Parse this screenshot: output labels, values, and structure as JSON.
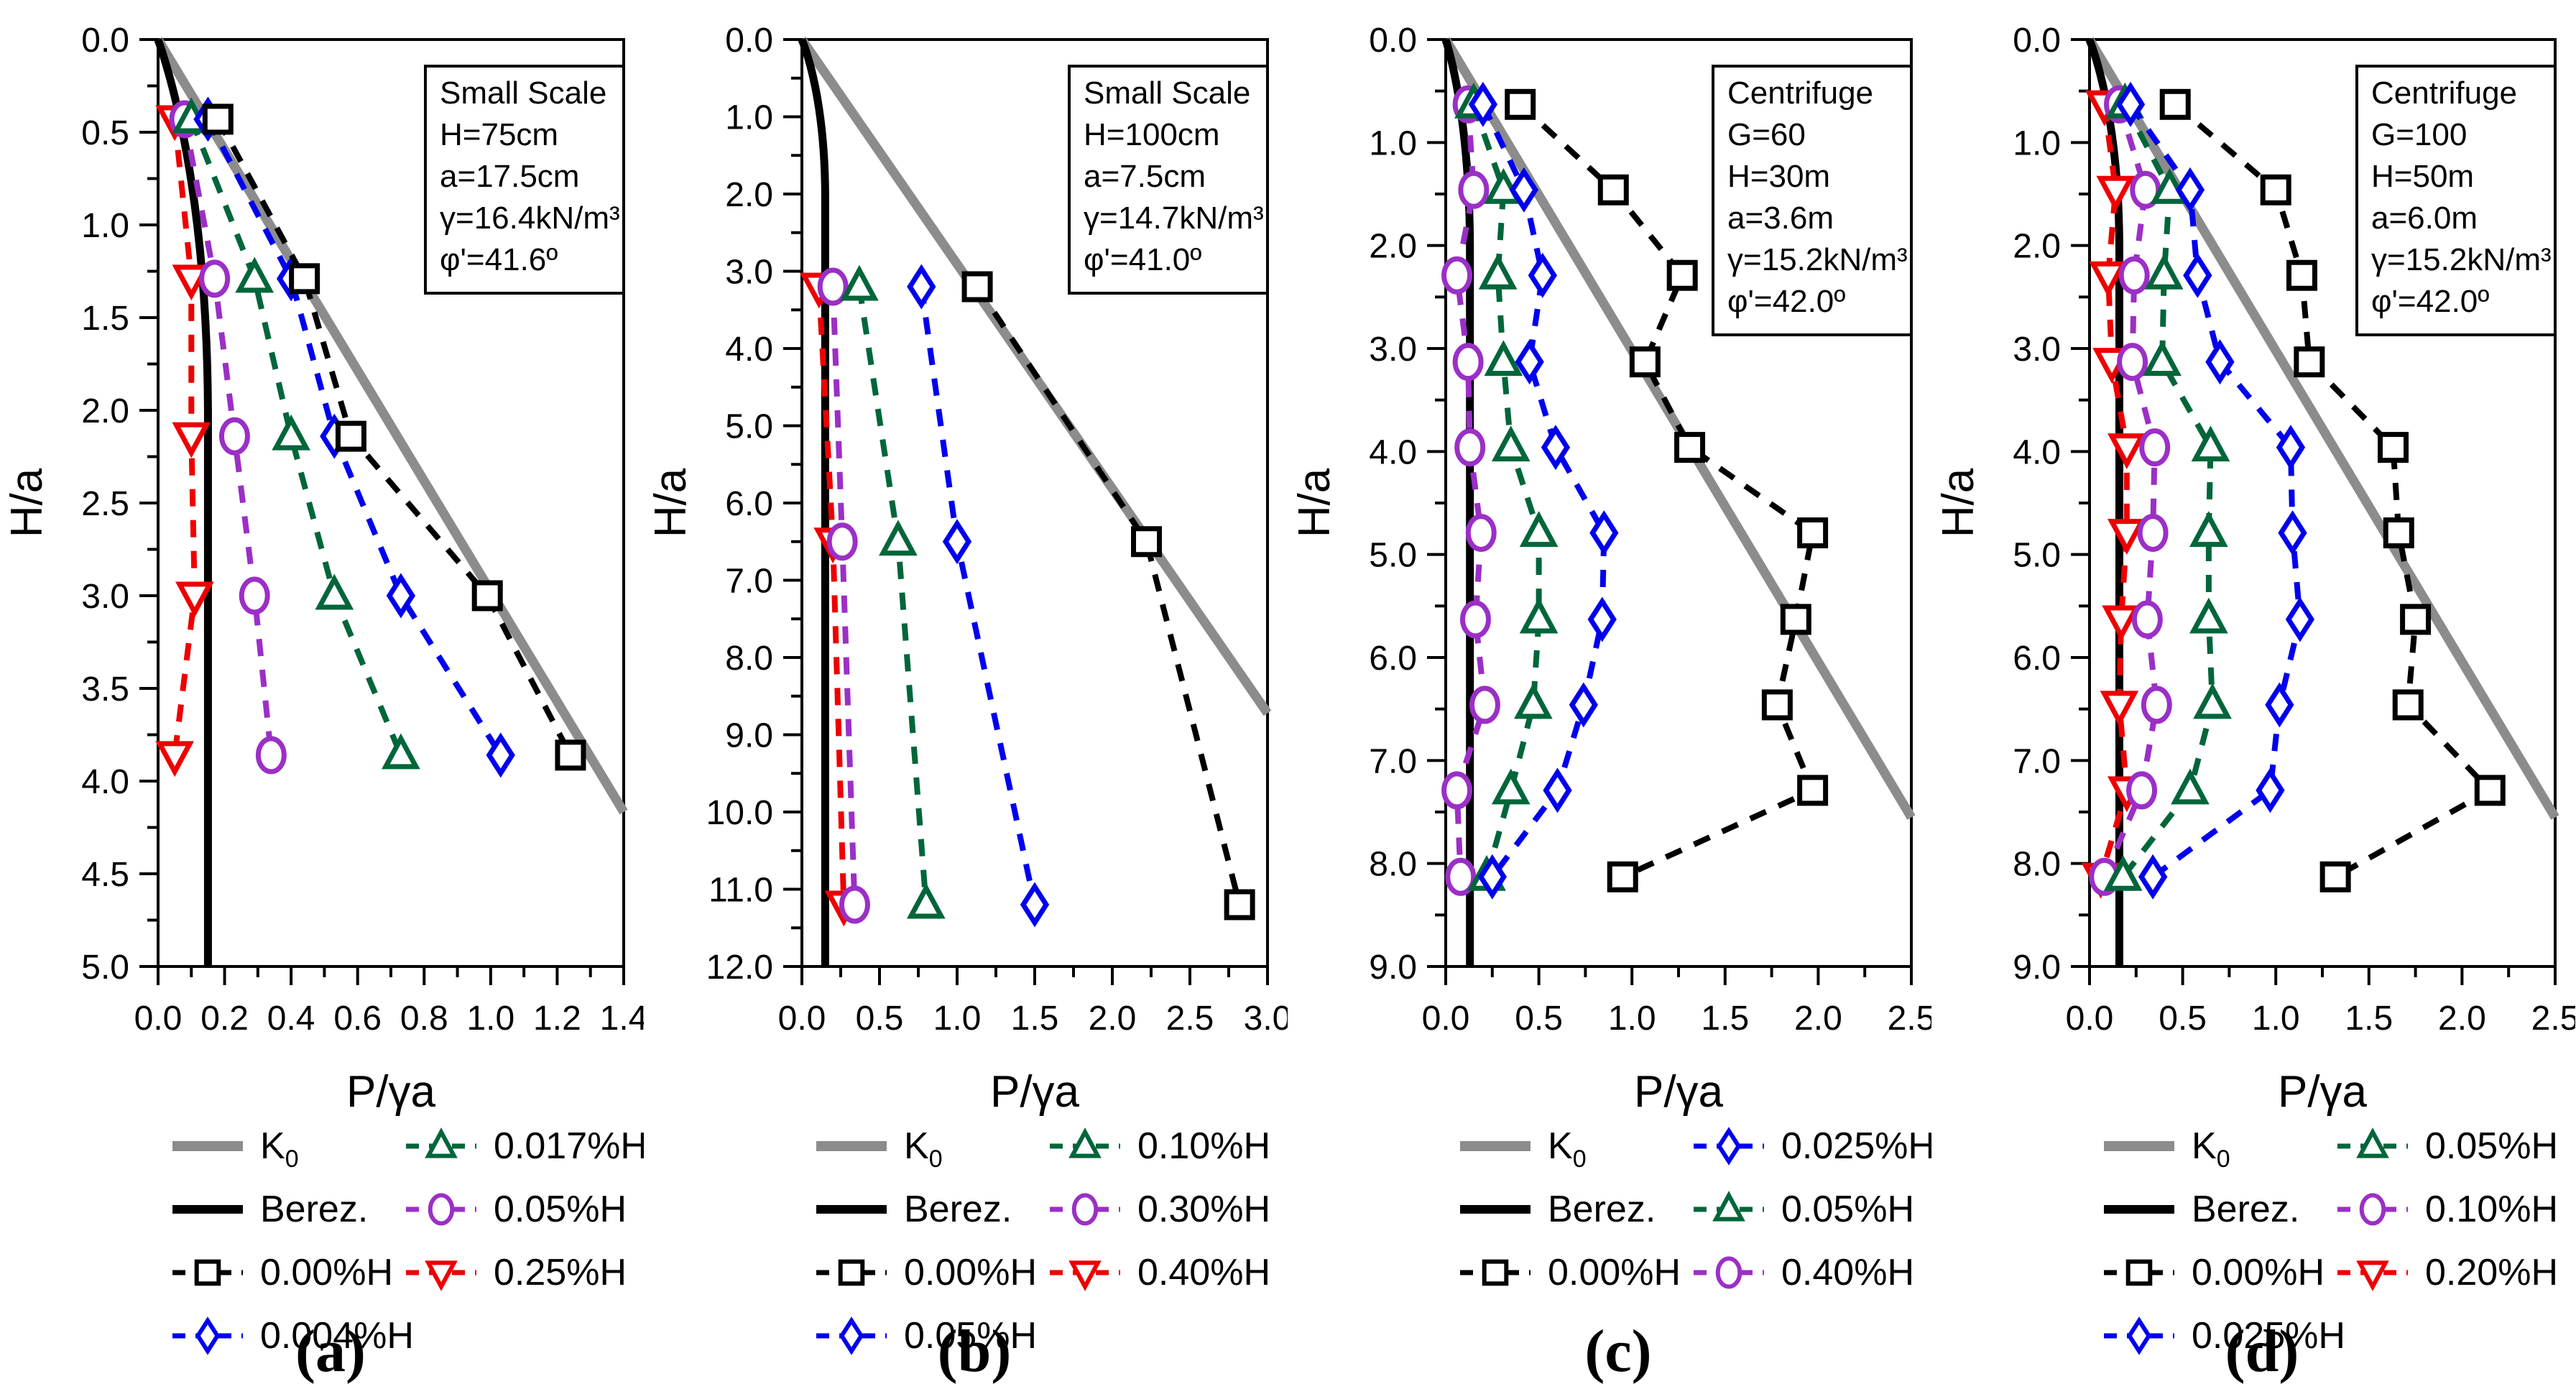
{
  "page": {
    "background": "#ffffff",
    "k0_color": "#8C8C8C",
    "berez_color": "#000000",
    "frame_color": "#000000"
  },
  "chart_data": [
    {
      "id": "a",
      "type": "line",
      "caption": "(a)",
      "annotation": [
        "Small Scale",
        "H=75cm",
        "a=17.5cm",
        "γ=16.4kN/m³",
        "φ'=41.6º"
      ],
      "xlabel": "P/γa",
      "ylabel": "H/a",
      "xlim": [
        0,
        1.4
      ],
      "xtick": 0.2,
      "ylim": [
        0,
        5.0
      ],
      "ytick": 0.5,
      "k0_slope": 0.336,
      "berez_asymptote": 0.15,
      "depths": [
        0.43,
        1.29,
        2.14,
        3.0,
        3.86
      ],
      "series": [
        {
          "name": "0.00%H",
          "color": "#000000",
          "marker": "square",
          "values": [
            0.18,
            0.44,
            0.58,
            0.99,
            1.24
          ]
        },
        {
          "name": "0.004%H",
          "color": "#0000EE",
          "marker": "diamond",
          "values": [
            0.15,
            0.4,
            0.53,
            0.73,
            1.03
          ]
        },
        {
          "name": "0.017%H",
          "color": "#00663A",
          "marker": "triangle-up",
          "values": [
            0.1,
            0.29,
            0.4,
            0.53,
            0.73
          ]
        },
        {
          "name": "0.05%H",
          "color": "#9B2FC6",
          "marker": "circle",
          "values": [
            0.08,
            0.17,
            0.23,
            0.29,
            0.34
          ]
        },
        {
          "name": "0.25%H",
          "color": "#EE0000",
          "marker": "triangle-down",
          "values": [
            0.05,
            0.1,
            0.1,
            0.11,
            0.05
          ]
        }
      ],
      "legend": [
        {
          "kind": "k0",
          "label": "K",
          "sub": "0"
        },
        {
          "kind": "berez",
          "label": "Berez."
        },
        {
          "kind": "series",
          "index": 0
        },
        {
          "kind": "series",
          "index": 1
        },
        {
          "kind": "series",
          "index": 2
        },
        {
          "kind": "series",
          "index": 3
        },
        {
          "kind": "series",
          "index": 4
        }
      ],
      "legend_columns": [
        4,
        3
      ]
    },
    {
      "id": "b",
      "type": "line",
      "caption": "(b)",
      "annotation": [
        "Small Scale",
        "H=100cm",
        "a=7.5cm",
        "γ=14.7kN/m³",
        "φ'=41.0º"
      ],
      "xlabel": "P/γa",
      "ylabel": "H/a",
      "xlim": [
        0,
        3.0
      ],
      "xtick": 0.5,
      "ylim": [
        0,
        12.0
      ],
      "ytick": 1.0,
      "k0_slope": 0.344,
      "berez_asymptote": 0.15,
      "depths": [
        3.2,
        6.5,
        11.2
      ],
      "series": [
        {
          "name": "0.00%H",
          "color": "#000000",
          "marker": "square",
          "values": [
            1.13,
            2.22,
            2.82
          ]
        },
        {
          "name": "0.05%H",
          "color": "#0000EE",
          "marker": "diamond",
          "values": [
            0.77,
            1.0,
            1.5
          ]
        },
        {
          "name": "0.10%H",
          "color": "#00663A",
          "marker": "triangle-up",
          "values": [
            0.37,
            0.62,
            0.8
          ]
        },
        {
          "name": "0.30%H",
          "color": "#9B2FC6",
          "marker": "circle",
          "values": [
            0.2,
            0.26,
            0.34
          ]
        },
        {
          "name": "0.40%H",
          "color": "#EE0000",
          "marker": "triangle-down",
          "values": [
            0.11,
            0.2,
            0.27
          ]
        }
      ],
      "legend": [
        {
          "kind": "k0",
          "label": "K",
          "sub": "0"
        },
        {
          "kind": "berez",
          "label": "Berez."
        },
        {
          "kind": "series",
          "index": 0
        },
        {
          "kind": "series",
          "index": 1
        },
        {
          "kind": "series",
          "index": 2
        },
        {
          "kind": "series",
          "index": 3
        },
        {
          "kind": "series",
          "index": 4
        }
      ],
      "legend_columns": [
        4,
        3
      ]
    },
    {
      "id": "c",
      "type": "line",
      "caption": "(c)",
      "annotation": [
        "Centrifuge",
        "G=60",
        "H=30m",
        "a=3.6m",
        "γ=15.2kN/m³",
        "φ'=42.0º"
      ],
      "xlabel": "P/γa",
      "ylabel": "H/a",
      "xlim": [
        0,
        2.5
      ],
      "xtick": 0.5,
      "ylim": [
        0,
        9.0
      ],
      "ytick": 1.0,
      "k0_slope": 0.331,
      "berez_asymptote": 0.13,
      "depths": [
        0.63,
        1.46,
        2.29,
        3.13,
        3.96,
        4.79,
        5.63,
        6.46,
        7.29,
        8.13
      ],
      "series": [
        {
          "name": "0.00%H",
          "color": "#000000",
          "marker": "square",
          "values": [
            0.4,
            0.9,
            1.27,
            1.07,
            1.31,
            1.97,
            1.88,
            1.78,
            1.97,
            0.95
          ]
        },
        {
          "name": "0.025%H",
          "color": "#0000EE",
          "marker": "diamond",
          "values": [
            0.2,
            0.42,
            0.52,
            0.45,
            0.59,
            0.85,
            0.84,
            0.74,
            0.6,
            0.25
          ]
        },
        {
          "name": "0.05%H",
          "color": "#00663A",
          "marker": "triangle-up",
          "values": [
            0.15,
            0.31,
            0.28,
            0.31,
            0.35,
            0.5,
            0.5,
            0.47,
            0.35,
            0.22
          ]
        },
        {
          "name": "0.40%H",
          "color": "#9B2FC6",
          "marker": "circle",
          "values": [
            0.12,
            0.15,
            0.06,
            0.12,
            0.13,
            0.19,
            0.16,
            0.21,
            0.06,
            0.08
          ]
        }
      ],
      "legend": [
        {
          "kind": "k0",
          "label": "K",
          "sub": "0"
        },
        {
          "kind": "berez",
          "label": "Berez."
        },
        {
          "kind": "series",
          "index": 0
        },
        {
          "kind": "series",
          "index": 1
        },
        {
          "kind": "series",
          "index": 2
        },
        {
          "kind": "series",
          "index": 3
        }
      ],
      "legend_columns": [
        3,
        3
      ]
    },
    {
      "id": "d",
      "type": "line",
      "caption": "(d)",
      "annotation": [
        "Centrifuge",
        "G=100",
        "H=50m",
        "a=6.0m",
        "γ=15.2kN/m³",
        "φ'=42.0º"
      ],
      "xlabel": "P/γa",
      "ylabel": "H/a",
      "xlim": [
        0,
        2.5
      ],
      "xtick": 0.5,
      "ylim": [
        0,
        9.0
      ],
      "ytick": 1.0,
      "k0_slope": 0.331,
      "berez_asymptote": 0.16,
      "depths": [
        0.63,
        1.46,
        2.29,
        3.13,
        3.96,
        4.79,
        5.63,
        6.46,
        7.29,
        8.13
      ],
      "series": [
        {
          "name": "0.00%H",
          "color": "#000000",
          "marker": "square",
          "values": [
            0.46,
            1.0,
            1.14,
            1.18,
            1.63,
            1.66,
            1.75,
            1.71,
            2.15,
            1.32
          ]
        },
        {
          "name": "0.025%H",
          "color": "#0000EE",
          "marker": "diamond",
          "values": [
            0.22,
            0.54,
            0.58,
            0.7,
            1.08,
            1.09,
            1.13,
            1.02,
            0.97,
            0.34
          ]
        },
        {
          "name": "0.05%H",
          "color": "#00663A",
          "marker": "triangle-up",
          "values": [
            0.19,
            0.43,
            0.4,
            0.39,
            0.65,
            0.64,
            0.64,
            0.66,
            0.54,
            0.18
          ]
        },
        {
          "name": "0.10%H",
          "color": "#9B2FC6",
          "marker": "circle",
          "values": [
            0.16,
            0.3,
            0.24,
            0.23,
            0.35,
            0.34,
            0.31,
            0.36,
            0.28,
            0.08
          ]
        },
        {
          "name": "0.20%H",
          "color": "#EE0000",
          "marker": "triangle-down",
          "values": [
            0.08,
            0.14,
            0.1,
            0.12,
            0.2,
            0.2,
            0.17,
            0.16,
            0.2,
            0.06
          ]
        }
      ],
      "legend": [
        {
          "kind": "k0",
          "label": "K",
          "sub": "0"
        },
        {
          "kind": "berez",
          "label": "Berez."
        },
        {
          "kind": "series",
          "index": 0
        },
        {
          "kind": "series",
          "index": 1
        },
        {
          "kind": "series",
          "index": 2
        },
        {
          "kind": "series",
          "index": 3
        },
        {
          "kind": "series",
          "index": 4
        }
      ],
      "legend_columns": [
        4,
        3
      ]
    }
  ]
}
